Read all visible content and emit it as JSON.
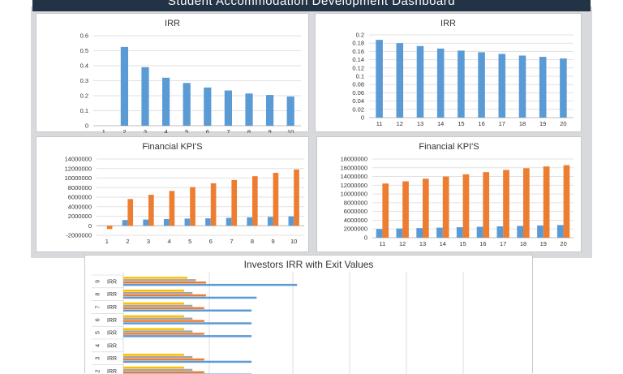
{
  "dashboard": {
    "title": "Student Accommodation Development Dashboard"
  },
  "panels": {
    "irr_a": {
      "title": "IRR"
    },
    "irr_b": {
      "title": "IRR"
    },
    "kpi_a": {
      "title": "Financial KPI'S"
    },
    "kpi_b": {
      "title": "Financial KPI'S"
    },
    "investors": {
      "title": "Investors IRR with Exit Values"
    }
  },
  "colors": {
    "blue": "#5b9bd5",
    "orange": "#ed7d31",
    "gray": "#a5a5a5",
    "yellow": "#ffc000",
    "header": "#223345"
  },
  "chart_data": [
    {
      "type": "bar",
      "title": "IRR",
      "categories": [
        "1",
        "2",
        "3",
        "4",
        "5",
        "6",
        "7",
        "8",
        "9",
        "10"
      ],
      "values": [
        0,
        0.525,
        0.39,
        0.32,
        0.285,
        0.255,
        0.235,
        0.215,
        0.205,
        0.195
      ],
      "ylim": [
        0,
        0.6
      ],
      "yticks": [
        "0",
        "0.1",
        "0.2",
        "0.3",
        "0.4",
        "0.5",
        "0.6"
      ]
    },
    {
      "type": "bar",
      "title": "IRR",
      "categories": [
        "11",
        "12",
        "13",
        "14",
        "15",
        "16",
        "17",
        "18",
        "19",
        "20"
      ],
      "values": [
        0.188,
        0.18,
        0.173,
        0.167,
        0.162,
        0.158,
        0.154,
        0.15,
        0.147,
        0.143
      ],
      "ylim": [
        0,
        0.2
      ],
      "yticks": [
        "0",
        "0.02",
        "0.04",
        "0.06",
        "0.08",
        "0.1",
        "0.12",
        "0.14",
        "0.16",
        "0.18",
        "0.2"
      ]
    },
    {
      "type": "bar",
      "title": "Financial KPI'S",
      "categories": [
        "1",
        "2",
        "3",
        "4",
        "5",
        "6",
        "7",
        "8",
        "9",
        "10"
      ],
      "series": [
        {
          "values": [
            0,
            1200000,
            1300000,
            1400000,
            1500000,
            1550000,
            1650000,
            1750000,
            1850000,
            1950000
          ]
        },
        {
          "values": [
            -700000,
            5600000,
            6500000,
            7300000,
            8100000,
            8900000,
            9600000,
            10400000,
            11100000,
            11800000
          ]
        }
      ],
      "ylim": [
        -2000000,
        14000000
      ],
      "yticks": [
        "-2000000",
        "0",
        "2000000",
        "4000000",
        "6000000",
        "8000000",
        "10000000",
        "12000000",
        "14000000"
      ]
    },
    {
      "type": "bar",
      "title": "Financial KPI'S",
      "categories": [
        "11",
        "12",
        "13",
        "14",
        "15",
        "16",
        "17",
        "18",
        "19",
        "20"
      ],
      "series": [
        {
          "values": [
            2000000,
            2100000,
            2200000,
            2300000,
            2400000,
            2500000,
            2600000,
            2700000,
            2800000,
            2900000
          ]
        },
        {
          "values": [
            12400000,
            12900000,
            13500000,
            14000000,
            14500000,
            15000000,
            15500000,
            15900000,
            16300000,
            16600000
          ]
        }
      ],
      "ylim": [
        0,
        18000000
      ],
      "yticks": [
        "0",
        "2000000",
        "4000000",
        "6000000",
        "8000000",
        "10000000",
        "12000000",
        "14000000",
        "16000000",
        "18000000"
      ]
    },
    {
      "type": "bar",
      "title": "Investors IRR with Exit Values",
      "orientation": "horizontal",
      "rows": [
        {
          "group": "9",
          "label": "IRR",
          "values": [
            0.515,
            0.245,
            0.215,
            0.19
          ]
        },
        {
          "group": "8",
          "label": "IRR",
          "values": [
            0.395,
            0.245,
            0.205,
            0.18
          ]
        },
        {
          "group": "7",
          "label": "IRR",
          "values": [
            0.38,
            0.24,
            0.205,
            0.18
          ]
        },
        {
          "group": "6",
          "label": "IRR",
          "values": [
            0.38,
            0.24,
            0.205,
            0.18
          ]
        },
        {
          "group": "5",
          "label": "IRR",
          "values": [
            0.38,
            0.24,
            0.205,
            0.18
          ]
        },
        {
          "group": "4",
          "label": "IRR",
          "values": [
            0,
            0,
            0,
            0
          ]
        },
        {
          "group": "3",
          "label": "IRR",
          "values": [
            0.38,
            0.24,
            0.205,
            0.18
          ]
        },
        {
          "group": "2",
          "label": "IRR",
          "values": [
            0.38,
            0.24,
            0.205,
            0.18
          ]
        }
      ]
    }
  ]
}
